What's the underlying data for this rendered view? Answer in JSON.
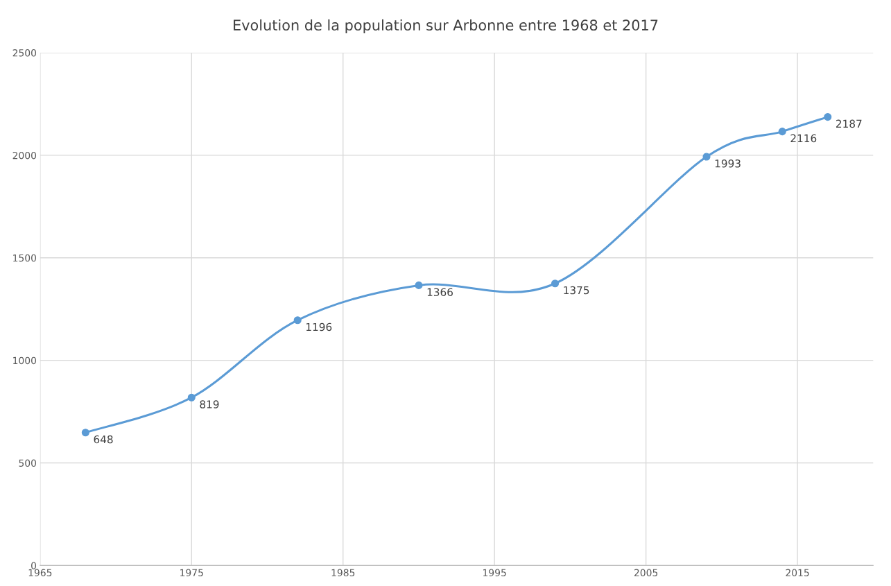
{
  "chart_data": {
    "type": "line",
    "title": "Evolution de la population sur Arbonne entre 1968 et 2017",
    "x": [
      1968,
      1975,
      1982,
      1990,
      1999,
      2009,
      2014,
      2017
    ],
    "series": [
      {
        "color": "#5b9bd5",
        "values": [
          648,
          819,
          1196,
          1366,
          1375,
          1993,
          2116,
          2187
        ]
      }
    ],
    "xlim": [
      1965,
      2020
    ],
    "xticks": [
      1965,
      1975,
      1985,
      1995,
      2005,
      2015
    ],
    "ylim": [
      0,
      2500
    ],
    "yticks": [
      0,
      500,
      1000,
      1500,
      2000,
      2500
    ],
    "grid": true,
    "marker": "circle",
    "line_style": "solid",
    "data_labels": true
  }
}
